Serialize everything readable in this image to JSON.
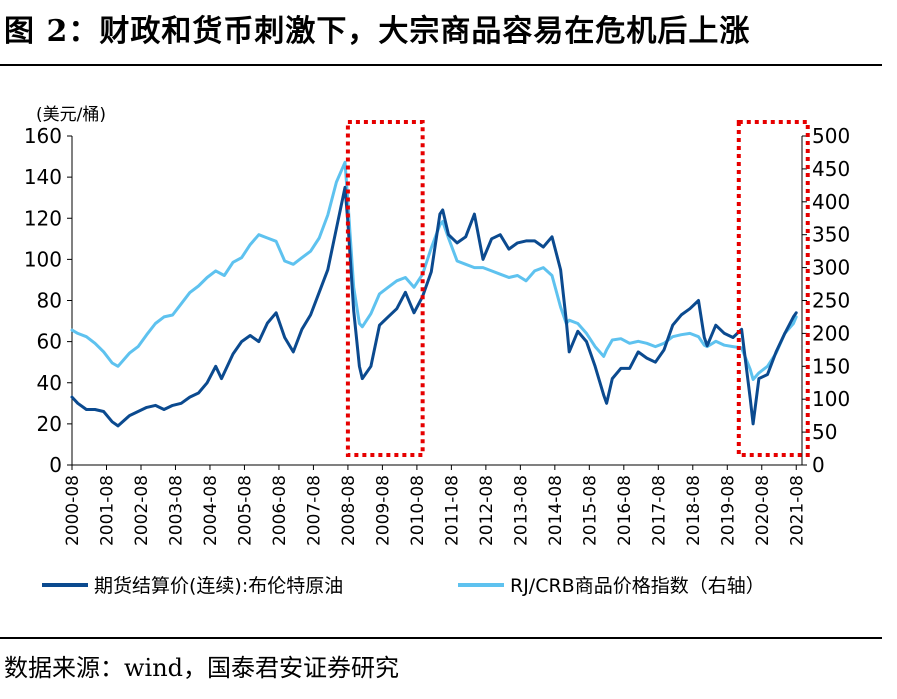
{
  "header": {
    "title": "图 2：财政和货币刺激下，大宗商品容易在危机后上涨"
  },
  "footer": {
    "source": "数据来源：wind，国泰君安证券研究"
  },
  "colors": {
    "brent": "#0b4a8f",
    "crb": "#5ec2ef",
    "highlight": "#e60000",
    "axis": "#000000"
  },
  "chart_data": {
    "type": "line",
    "title": "财政和货币刺激下，大宗商品容易在危机后上涨",
    "ylabel": "(美元/桶)",
    "ylim": [
      0,
      160
    ],
    "yticks": [
      0,
      20,
      40,
      60,
      80,
      100,
      120,
      140,
      160
    ],
    "y2lim": [
      0,
      500
    ],
    "y2ticks": [
      0,
      50,
      100,
      150,
      200,
      250,
      300,
      350,
      400,
      450,
      500
    ],
    "xlim": [
      2000.583,
      2021.75
    ],
    "categories": [
      "2000-08",
      "2001-08",
      "2002-08",
      "2003-08",
      "2004-08",
      "2005-08",
      "2006-08",
      "2007-08",
      "2008-08",
      "2009-08",
      "2010-08",
      "2011-08",
      "2012-08",
      "2013-08",
      "2014-08",
      "2015-08",
      "2016-08",
      "2017-08",
      "2018-08",
      "2019-08",
      "2020-08",
      "2021-08"
    ],
    "series": [
      {
        "name": "期货结算价(连续):布伦特原油",
        "axis": "left",
        "x": [
          2000.583,
          2000.75,
          2001.0,
          2001.25,
          2001.5,
          2001.75,
          2001.917,
          2002.25,
          2002.5,
          2002.75,
          2003.0,
          2003.25,
          2003.5,
          2003.75,
          2004.0,
          2004.25,
          2004.5,
          2004.75,
          2004.917,
          2005.25,
          2005.5,
          2005.75,
          2006.0,
          2006.25,
          2006.5,
          2006.75,
          2007.0,
          2007.25,
          2007.5,
          2007.75,
          2008.0,
          2008.25,
          2008.5,
          2008.583,
          2008.75,
          2008.917,
          2009.0,
          2009.25,
          2009.5,
          2009.75,
          2010.0,
          2010.25,
          2010.5,
          2010.75,
          2011.0,
          2011.25,
          2011.333,
          2011.5,
          2011.75,
          2012.0,
          2012.25,
          2012.5,
          2012.75,
          2013.0,
          2013.25,
          2013.5,
          2013.75,
          2014.0,
          2014.25,
          2014.5,
          2014.75,
          2014.917,
          2015.0,
          2015.25,
          2015.5,
          2015.75,
          2016.0,
          2016.083,
          2016.25,
          2016.5,
          2016.75,
          2017.0,
          2017.25,
          2017.5,
          2017.75,
          2018.0,
          2018.25,
          2018.5,
          2018.75,
          2018.917,
          2019.0,
          2019.25,
          2019.5,
          2019.75,
          2020.0,
          2020.25,
          2020.333,
          2020.5,
          2020.75,
          2021.0,
          2021.25,
          2021.5,
          2021.583
        ],
        "values": [
          33,
          30,
          27,
          27,
          26,
          21,
          19,
          24,
          26,
          28,
          29,
          27,
          29,
          30,
          33,
          35,
          40,
          48,
          42,
          54,
          60,
          63,
          60,
          69,
          74,
          62,
          55,
          66,
          73,
          84,
          95,
          115,
          135,
          118,
          75,
          48,
          42,
          48,
          68,
          72,
          76,
          84,
          74,
          82,
          94,
          122,
          124,
          112,
          108,
          111,
          122,
          100,
          110,
          112,
          105,
          108,
          109,
          109,
          106,
          111,
          95,
          70,
          55,
          65,
          60,
          48,
          34,
          30,
          42,
          47,
          47,
          55,
          52,
          50,
          56,
          68,
          73,
          76,
          80,
          62,
          58,
          68,
          64,
          62,
          66,
          32,
          20,
          42,
          44,
          55,
          64,
          72,
          74
        ]
      },
      {
        "name": "RJ/CRB商品价格指数（右轴）",
        "axis": "right",
        "x": [
          2000.583,
          2000.75,
          2001.0,
          2001.25,
          2001.5,
          2001.75,
          2001.917,
          2002.25,
          2002.5,
          2002.75,
          2003.0,
          2003.25,
          2003.5,
          2003.75,
          2004.0,
          2004.25,
          2004.5,
          2004.75,
          2005.0,
          2005.25,
          2005.5,
          2005.75,
          2006.0,
          2006.25,
          2006.5,
          2006.75,
          2007.0,
          2007.25,
          2007.5,
          2007.75,
          2008.0,
          2008.25,
          2008.5,
          2008.583,
          2008.75,
          2008.917,
          2009.0,
          2009.25,
          2009.5,
          2009.75,
          2010.0,
          2010.25,
          2010.5,
          2010.75,
          2011.0,
          2011.25,
          2011.333,
          2011.5,
          2011.75,
          2012.0,
          2012.25,
          2012.5,
          2012.75,
          2013.0,
          2013.25,
          2013.5,
          2013.75,
          2014.0,
          2014.25,
          2014.5,
          2014.75,
          2014.917,
          2015.0,
          2015.25,
          2015.5,
          2015.75,
          2016.0,
          2016.083,
          2016.25,
          2016.5,
          2016.75,
          2017.0,
          2017.25,
          2017.5,
          2017.75,
          2018.0,
          2018.25,
          2018.5,
          2018.75,
          2018.917,
          2019.0,
          2019.25,
          2019.5,
          2019.75,
          2020.0,
          2020.25,
          2020.333,
          2020.5,
          2020.75,
          2021.0,
          2021.25,
          2021.5,
          2021.583
        ],
        "values": [
          205,
          200,
          195,
          185,
          172,
          155,
          150,
          170,
          180,
          198,
          215,
          225,
          228,
          245,
          262,
          272,
          285,
          295,
          288,
          308,
          315,
          335,
          350,
          345,
          340,
          310,
          305,
          315,
          325,
          345,
          380,
          430,
          460,
          400,
          270,
          215,
          210,
          230,
          260,
          270,
          280,
          285,
          270,
          290,
          330,
          365,
          370,
          345,
          310,
          305,
          300,
          300,
          295,
          290,
          285,
          288,
          280,
          295,
          300,
          288,
          240,
          215,
          220,
          215,
          200,
          180,
          165,
          175,
          190,
          192,
          185,
          188,
          185,
          180,
          185,
          195,
          198,
          200,
          195,
          182,
          180,
          188,
          182,
          180,
          178,
          145,
          130,
          140,
          150,
          170,
          200,
          215,
          225
        ]
      }
    ],
    "highlights": [
      {
        "from": 2008.583,
        "to": 2010.75
      },
      {
        "from": 2019.917,
        "to": 2021.917
      }
    ]
  }
}
